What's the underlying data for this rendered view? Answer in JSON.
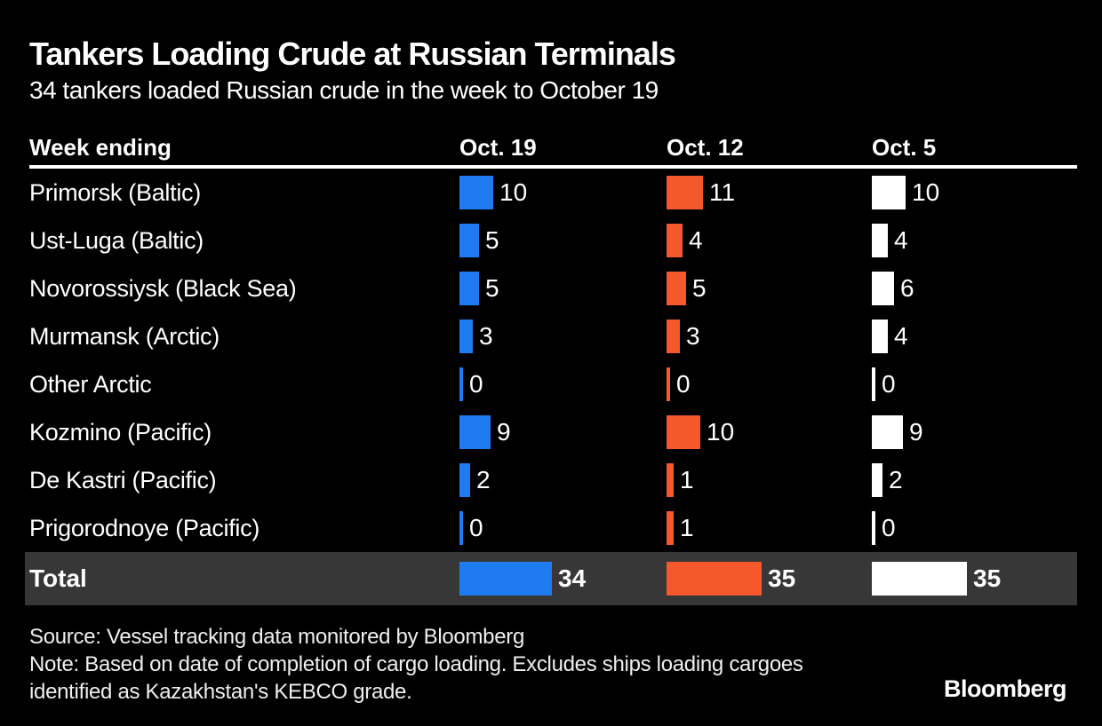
{
  "header": {
    "title": "Tankers Loading Crude at Russian Terminals",
    "subtitle": "34 tankers loaded Russian crude in the week to October 19"
  },
  "table": {
    "row_header": "Week ending",
    "total_label": "Total"
  },
  "chart_data": {
    "type": "bar",
    "orientation": "horizontal",
    "title": "Tankers Loading Crude at Russian Terminals",
    "subtitle": "34 tankers loaded Russian crude in the week to October 19",
    "row_header": "Week ending",
    "categories": [
      "Primorsk (Baltic)",
      "Ust-Luga (Baltic)",
      "Novorossiysk (Black Sea)",
      "Murmansk (Arctic)",
      "Other Arctic",
      "Kozmino (Pacific)",
      "De Kastri (Pacific)",
      "Prigorodnoye (Pacific)"
    ],
    "series": [
      {
        "name": "Oct. 19",
        "color": "#1f7cf0",
        "values": [
          10,
          5,
          5,
          3,
          0,
          9,
          2,
          0
        ],
        "total": 34
      },
      {
        "name": "Oct. 12",
        "color": "#f4582b",
        "values": [
          11,
          4,
          5,
          3,
          0,
          10,
          1,
          1
        ],
        "total": 35
      },
      {
        "name": "Oct. 5",
        "color": "#ffffff",
        "values": [
          10,
          4,
          6,
          4,
          0,
          9,
          2,
          0
        ],
        "total": 35
      }
    ],
    "total_label": "Total",
    "value_labels_shown": true,
    "legend_position": "column-headers",
    "grid": false
  },
  "footer": {
    "source": "Source: Vessel tracking data monitored by Bloomberg",
    "note": "Note: Based on date of completion of cargo loading. Excludes ships loading cargoes identified as Kazakhstan's KEBCO grade.",
    "logo": "Bloomberg"
  },
  "colors": {
    "background": "#000000",
    "text": "#ffffff",
    "oct19_blue": "#1f7cf0",
    "oct12_orange": "#f4582b",
    "oct5_white": "#ffffff",
    "total_row_bg": "#373737",
    "rule": "#ffffff"
  }
}
